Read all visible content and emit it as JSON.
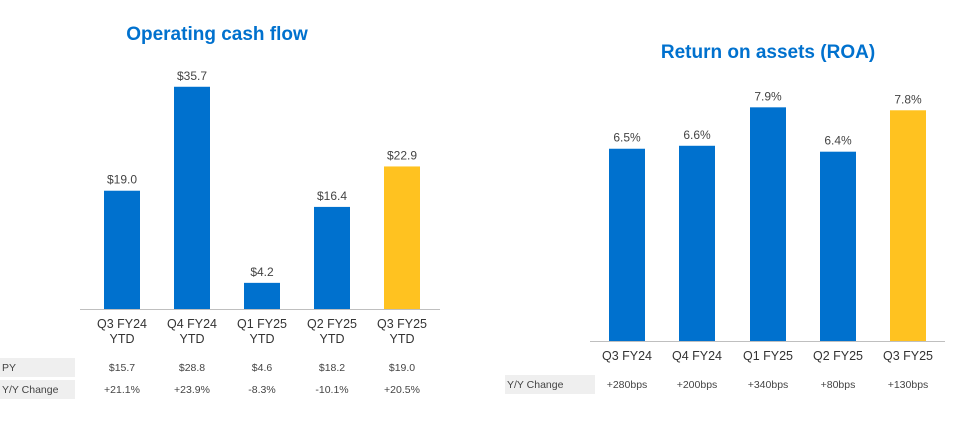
{
  "colors": {
    "primary": "#0071CE",
    "highlight": "#FFC220",
    "title": "#0071CE",
    "row_bg": "#EFEFEF",
    "axis": "#BFBFBF"
  },
  "chart_data": [
    {
      "type": "bar",
      "title": "Operating cash flow",
      "categories": [
        [
          "Q3 FY24",
          "YTD"
        ],
        [
          "Q4 FY24",
          "YTD"
        ],
        [
          "Q1 FY25",
          "YTD"
        ],
        [
          "Q2 FY25",
          "YTD"
        ],
        [
          "Q3 FY25",
          "YTD"
        ]
      ],
      "values": [
        19.0,
        35.7,
        4.2,
        16.4,
        22.9
      ],
      "value_labels": [
        "$19.0",
        "$35.7",
        "$4.2",
        "$16.4",
        "$22.9"
      ],
      "highlight_index": 4,
      "ylim": [
        0,
        40
      ],
      "table": {
        "rows": [
          {
            "label": "PY",
            "values": [
              "$15.7",
              "$28.8",
              "$4.6",
              "$18.2",
              "$19.0"
            ]
          },
          {
            "label": "Y/Y Change",
            "values": [
              "+21.1%",
              "+23.9%",
              "-8.3%",
              "-10.1%",
              "+20.5%"
            ]
          }
        ]
      }
    },
    {
      "type": "bar",
      "title": "Return on assets (ROA)",
      "categories": [
        [
          "Q3 FY24"
        ],
        [
          "Q4 FY24"
        ],
        [
          "Q1 FY25"
        ],
        [
          "Q2 FY25"
        ],
        [
          "Q3 FY25"
        ]
      ],
      "values": [
        6.5,
        6.6,
        7.9,
        6.4,
        7.8
      ],
      "value_labels": [
        "6.5%",
        "6.6%",
        "7.9%",
        "6.4%",
        "7.8%"
      ],
      "highlight_index": 4,
      "ylim": [
        0,
        9.5
      ],
      "table": {
        "rows": [
          {
            "label": "Y/Y Change",
            "values": [
              "+280bps",
              "+200bps",
              "+340bps",
              "+80bps",
              "+130bps"
            ]
          }
        ]
      }
    }
  ]
}
